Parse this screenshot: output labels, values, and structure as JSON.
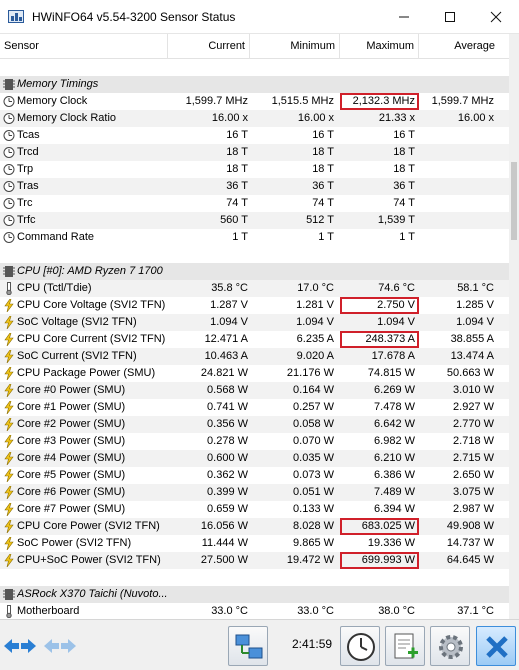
{
  "window": {
    "title": "HWiNFO64 v5.54-3200 Sensor Status",
    "minimize_glyph": "—",
    "maximize_glyph": "☐",
    "close_glyph": "✕"
  },
  "columns": [
    "Sensor",
    "Current",
    "Minimum",
    "Maximum",
    "Average"
  ],
  "rows": [
    {
      "type": "sep"
    },
    {
      "type": "group",
      "name": "Memory Timings",
      "icon": "memory-chip-icon"
    },
    {
      "type": "data",
      "icon": "clock-icon",
      "name": "Memory Clock",
      "cur": "1,599.7 MHz",
      "min": "1,515.5 MHz",
      "max": "2,132.3 MHz",
      "avg": "1,599.7 MHz",
      "hl": true
    },
    {
      "type": "data",
      "icon": "clock-icon",
      "name": "Memory Clock Ratio",
      "cur": "16.00 x",
      "min": "16.00 x",
      "max": "21.33 x",
      "avg": "16.00 x"
    },
    {
      "type": "data",
      "icon": "clock-icon",
      "name": "Tcas",
      "cur": "16 T",
      "min": "16 T",
      "max": "16 T",
      "avg": ""
    },
    {
      "type": "data",
      "icon": "clock-icon",
      "name": "Trcd",
      "cur": "18 T",
      "min": "18 T",
      "max": "18 T",
      "avg": ""
    },
    {
      "type": "data",
      "icon": "clock-icon",
      "name": "Trp",
      "cur": "18 T",
      "min": "18 T",
      "max": "18 T",
      "avg": ""
    },
    {
      "type": "data",
      "icon": "clock-icon",
      "name": "Tras",
      "cur": "36 T",
      "min": "36 T",
      "max": "36 T",
      "avg": ""
    },
    {
      "type": "data",
      "icon": "clock-icon",
      "name": "Trc",
      "cur": "74 T",
      "min": "74 T",
      "max": "74 T",
      "avg": ""
    },
    {
      "type": "data",
      "icon": "clock-icon",
      "name": "Trfc",
      "cur": "560 T",
      "min": "512 T",
      "max": "1,539 T",
      "avg": ""
    },
    {
      "type": "data",
      "icon": "clock-icon",
      "name": "Command Rate",
      "cur": "1 T",
      "min": "1 T",
      "max": "1 T",
      "avg": ""
    },
    {
      "type": "sep"
    },
    {
      "type": "group",
      "name": "CPU [#0]: AMD Ryzen 7 1700",
      "icon": "cpu-chip-icon"
    },
    {
      "type": "data",
      "icon": "thermometer-icon",
      "name": "CPU (Tctl/Tdie)",
      "cur": "35.8 °C",
      "min": "17.0 °C",
      "max": "74.6 °C",
      "avg": "58.1 °C"
    },
    {
      "type": "data",
      "icon": "bolt-icon",
      "name": "CPU Core Voltage (SVI2 TFN)",
      "cur": "1.287 V",
      "min": "1.281 V",
      "max": "2.750 V",
      "avg": "1.285 V",
      "hl": true
    },
    {
      "type": "data",
      "icon": "bolt-icon",
      "name": "SoC Voltage (SVI2 TFN)",
      "cur": "1.094 V",
      "min": "1.094 V",
      "max": "1.094 V",
      "avg": "1.094 V"
    },
    {
      "type": "data",
      "icon": "bolt-icon",
      "name": "CPU Core Current (SVI2 TFN)",
      "cur": "12.471 A",
      "min": "6.235 A",
      "max": "248.373 A",
      "avg": "38.855 A",
      "hl": true
    },
    {
      "type": "data",
      "icon": "bolt-icon",
      "name": "SoC Current (SVI2 TFN)",
      "cur": "10.463 A",
      "min": "9.020 A",
      "max": "17.678 A",
      "avg": "13.474 A"
    },
    {
      "type": "data",
      "icon": "bolt-icon",
      "name": "CPU Package Power (SMU)",
      "cur": "24.821 W",
      "min": "21.176 W",
      "max": "74.815 W",
      "avg": "50.663 W"
    },
    {
      "type": "data",
      "icon": "bolt-icon",
      "name": "Core #0 Power (SMU)",
      "cur": "0.568 W",
      "min": "0.164 W",
      "max": "6.269 W",
      "avg": "3.010 W"
    },
    {
      "type": "data",
      "icon": "bolt-icon",
      "name": "Core #1 Power (SMU)",
      "cur": "0.741 W",
      "min": "0.257 W",
      "max": "7.478 W",
      "avg": "2.927 W"
    },
    {
      "type": "data",
      "icon": "bolt-icon",
      "name": "Core #2 Power (SMU)",
      "cur": "0.356 W",
      "min": "0.058 W",
      "max": "6.642 W",
      "avg": "2.770 W"
    },
    {
      "type": "data",
      "icon": "bolt-icon",
      "name": "Core #3 Power (SMU)",
      "cur": "0.278 W",
      "min": "0.070 W",
      "max": "6.982 W",
      "avg": "2.718 W"
    },
    {
      "type": "data",
      "icon": "bolt-icon",
      "name": "Core #4 Power (SMU)",
      "cur": "0.600 W",
      "min": "0.035 W",
      "max": "6.210 W",
      "avg": "2.715 W"
    },
    {
      "type": "data",
      "icon": "bolt-icon",
      "name": "Core #5 Power (SMU)",
      "cur": "0.362 W",
      "min": "0.073 W",
      "max": "6.386 W",
      "avg": "2.650 W"
    },
    {
      "type": "data",
      "icon": "bolt-icon",
      "name": "Core #6 Power (SMU)",
      "cur": "0.399 W",
      "min": "0.051 W",
      "max": "7.489 W",
      "avg": "3.075 W"
    },
    {
      "type": "data",
      "icon": "bolt-icon",
      "name": "Core #7 Power (SMU)",
      "cur": "0.659 W",
      "min": "0.133 W",
      "max": "6.394 W",
      "avg": "2.987 W"
    },
    {
      "type": "data",
      "icon": "bolt-icon",
      "name": "CPU Core Power (SVI2 TFN)",
      "cur": "16.056 W",
      "min": "8.028 W",
      "max": "683.025 W",
      "avg": "49.908 W",
      "hl": true
    },
    {
      "type": "data",
      "icon": "bolt-icon",
      "name": "SoC Power (SVI2 TFN)",
      "cur": "11.444 W",
      "min": "9.865 W",
      "max": "19.336 W",
      "avg": "14.737 W"
    },
    {
      "type": "data",
      "icon": "bolt-icon",
      "name": "CPU+SoC Power (SVI2 TFN)",
      "cur": "27.500 W",
      "min": "19.472 W",
      "max": "699.993 W",
      "avg": "64.645 W",
      "hl": true
    },
    {
      "type": "sep"
    },
    {
      "type": "group",
      "name": "ASRock X370 Taichi (Nuvoto...",
      "icon": "memory-chip-icon"
    },
    {
      "type": "data",
      "icon": "thermometer-icon",
      "name": "Motherboard",
      "cur": "33.0 °C",
      "min": "33.0 °C",
      "max": "38.0 °C",
      "avg": "37.1 °C"
    }
  ],
  "toolbar": {
    "elapsed_time": "2:41:59"
  },
  "colors": {
    "highlight_box": "#d0202a",
    "voltage_icon": "#f0c419",
    "accent_blue": "#2a7fd4"
  }
}
